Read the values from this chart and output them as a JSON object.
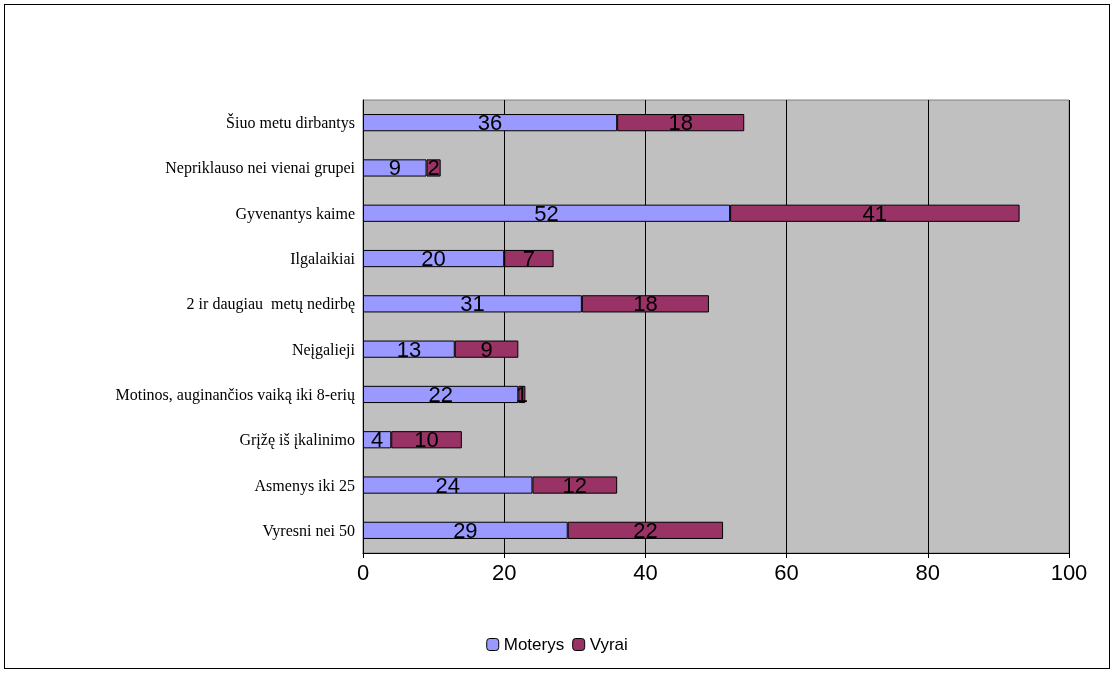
{
  "chart_data": {
    "type": "bar",
    "orientation": "horizontal",
    "stacked": true,
    "data_labels": true,
    "categories": [
      "Šiuo metu dirbantys",
      "Nepriklauso nei vienai grupei",
      "Gyvenantys kaime",
      "Ilgalaikiai",
      "2 ir daugiau  metų nedirbę",
      "Neįgalieji",
      "Motinos, auginančios vaiką iki 8-erių",
      "Grįžę iš įkalinimo",
      "Asmenys iki 25",
      "Vyresni nei 50"
    ],
    "series": [
      {
        "name": "Moterys",
        "color": "#9999ff",
        "values": [
          36,
          9,
          52,
          20,
          31,
          13,
          22,
          4,
          24,
          29
        ]
      },
      {
        "name": "Vyrai",
        "color": "#993366",
        "values": [
          18,
          2,
          41,
          7,
          18,
          9,
          1,
          10,
          12,
          22
        ]
      }
    ],
    "xlim": [
      0,
      100
    ],
    "xticks": [
      0,
      20,
      40,
      60,
      80,
      100
    ],
    "grid": "x",
    "legend": "bottom"
  }
}
